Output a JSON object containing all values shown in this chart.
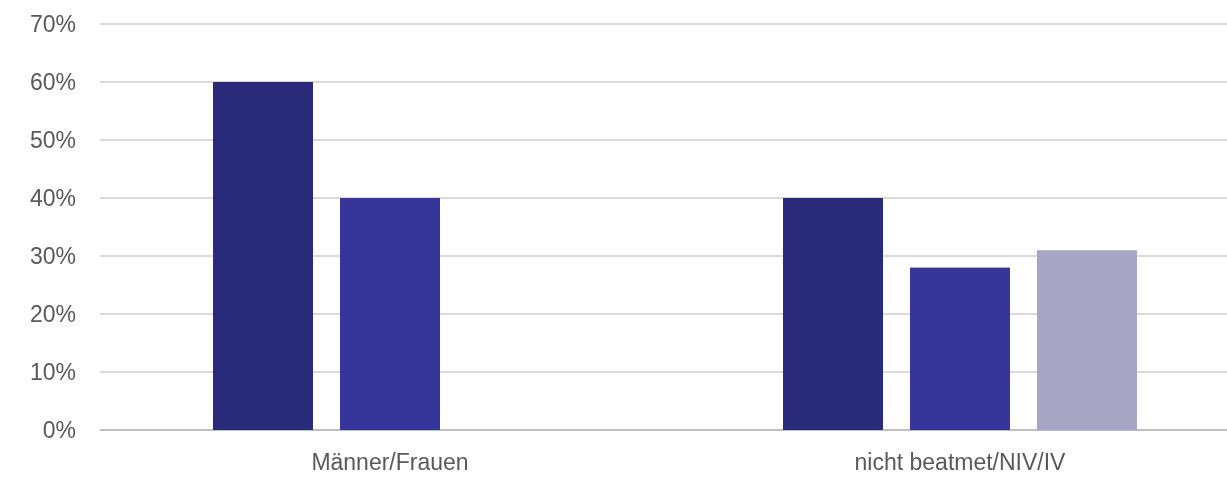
{
  "chart_data": {
    "type": "bar",
    "categories": [
      "Männer/Frauen",
      "nicht beatmet/NIV/IV"
    ],
    "series": [
      {
        "color": "#2a2a7a",
        "values": [
          60,
          40
        ]
      },
      {
        "color": "#35359a",
        "values": [
          40,
          28
        ]
      },
      {
        "color": "#a6a6c4",
        "values": [
          null,
          31
        ]
      }
    ],
    "ylim": [
      0,
      70
    ],
    "yticks": [
      {
        "value": 0,
        "label": "0%"
      },
      {
        "value": 10,
        "label": "10%"
      },
      {
        "value": 20,
        "label": "20%"
      },
      {
        "value": 30,
        "label": "30%"
      },
      {
        "value": 40,
        "label": "40%"
      },
      {
        "value": 50,
        "label": "50%"
      },
      {
        "value": 60,
        "label": "60%"
      },
      {
        "value": 70,
        "label": "70%"
      }
    ],
    "grid": "y"
  }
}
